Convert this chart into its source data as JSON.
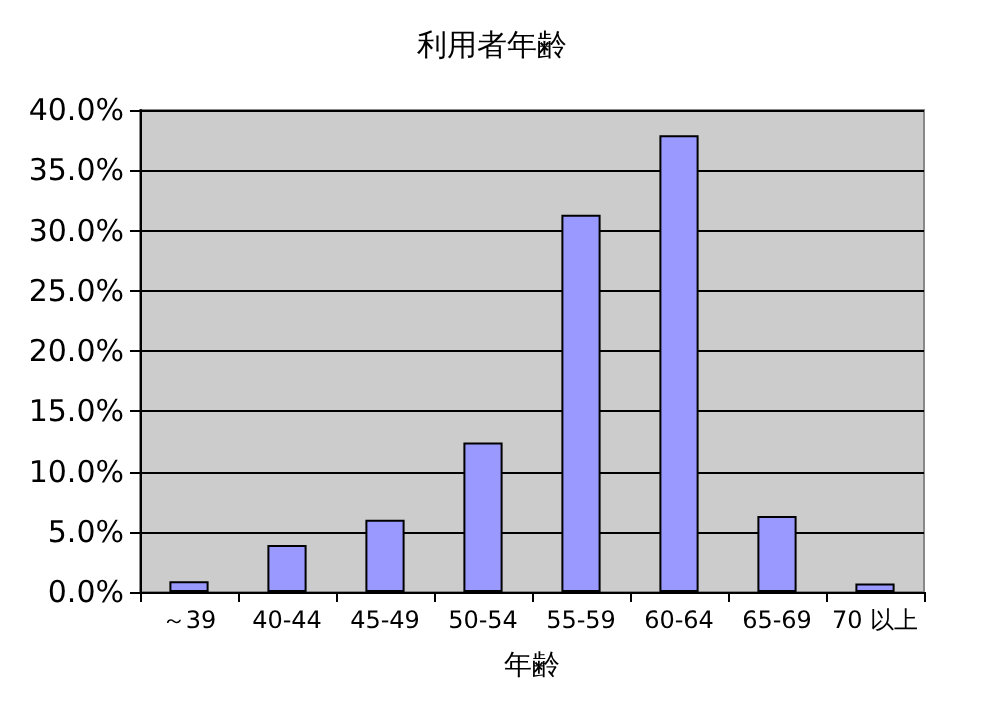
{
  "chart_data": {
    "type": "bar",
    "title": "利用者年齢",
    "xlabel": "年齢",
    "categories": [
      "～39",
      "40-44",
      "45-49",
      "50-54",
      "55-59",
      "60-64",
      "65-69",
      "70 以上"
    ],
    "values": [
      0.9,
      3.9,
      6.0,
      12.4,
      31.3,
      37.9,
      6.3,
      0.7
    ],
    "color": "#9999ff",
    "ylim": [
      0,
      40
    ],
    "yticks": [
      {
        "value": 0,
        "label": "0.0%"
      },
      {
        "value": 5,
        "label": "5.0%"
      },
      {
        "value": 10,
        "label": "10.0%"
      },
      {
        "value": 15,
        "label": "15.0%"
      },
      {
        "value": 20,
        "label": "20.0%"
      },
      {
        "value": 25,
        "label": "25.0%"
      },
      {
        "value": 30,
        "label": "30.0%"
      },
      {
        "value": 35,
        "label": "35.0%"
      },
      {
        "value": 40,
        "label": "40.0%"
      }
    ],
    "grid": true
  }
}
